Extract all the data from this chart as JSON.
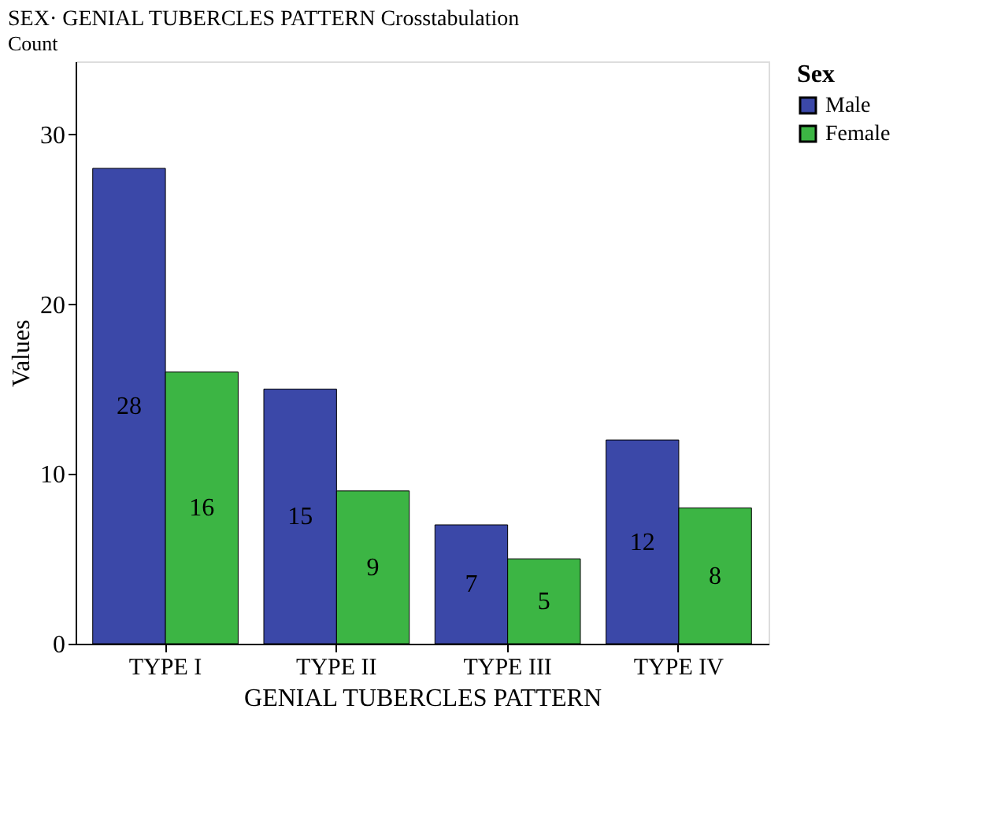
{
  "chart_data": {
    "type": "bar",
    "title": "SEX· GENIAL TUBERCLES PATTERN Crosstabulation",
    "subtitle": "Count",
    "xlabel": "GENIAL TUBERCLES PATTERN",
    "ylabel": "Values",
    "legend_title": "Sex",
    "categories": [
      "TYPE I",
      "TYPE II",
      "TYPE III",
      "TYPE IV"
    ],
    "series": [
      {
        "name": "Male",
        "color": "#3b48a8",
        "values": [
          28,
          15,
          7,
          12
        ]
      },
      {
        "name": "Female",
        "color": "#3cb544",
        "values": [
          16,
          9,
          5,
          8
        ]
      }
    ],
    "ylim": [
      0,
      34.3
    ],
    "yticks": [
      0,
      10,
      20,
      30
    ],
    "grid": false,
    "legend": "top right",
    "data_labels": true
  }
}
